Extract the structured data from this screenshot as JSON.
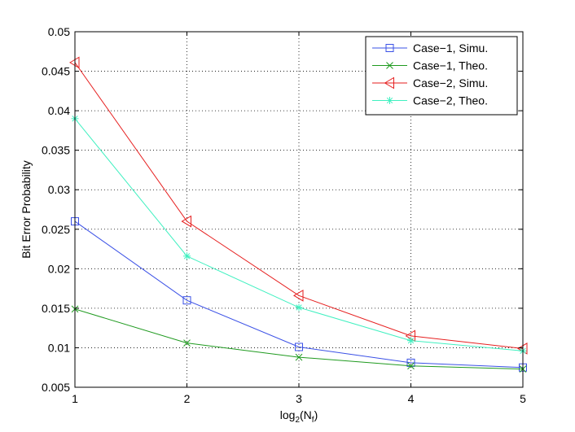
{
  "chart_data": {
    "type": "line",
    "title": "",
    "xlabel": "log",
    "xlabel_sub": "2",
    "xlabel_rest_open": "(N",
    "xlabel_sub2": "f",
    "xlabel_rest_close": ")",
    "ylabel": "Bit Error Probability",
    "xlim": [
      1,
      5
    ],
    "ylim": [
      0.005,
      0.05
    ],
    "xticks": [
      1,
      2,
      3,
      4,
      5
    ],
    "xtick_labels": [
      "1",
      "2",
      "3",
      "4",
      "5"
    ],
    "yticks": [
      0.005,
      0.01,
      0.015,
      0.02,
      0.025,
      0.03,
      0.035,
      0.04,
      0.045,
      0.05
    ],
    "ytick_labels": [
      "0.005",
      "0.01",
      "0.015",
      "0.02",
      "0.025",
      "0.03",
      "0.035",
      "0.04",
      "0.045",
      "0.05"
    ],
    "grid": true,
    "legend_position": "top-right",
    "x": [
      1,
      2,
      3,
      4,
      5
    ],
    "series": [
      {
        "name": "Case−1, Simu.",
        "values": [
          0.026,
          0.016,
          0.0101,
          0.0081,
          0.0075
        ],
        "color": "#3a50e6",
        "marker": "square"
      },
      {
        "name": "Case−1, Theo.",
        "values": [
          0.0149,
          0.0106,
          0.0088,
          0.0077,
          0.0073
        ],
        "color": "#1f9a1f",
        "marker": "x"
      },
      {
        "name": "Case−2, Simu.",
        "values": [
          0.0461,
          0.026,
          0.0166,
          0.0115,
          0.0099
        ],
        "color": "#e61e1e",
        "marker": "triangle-left"
      },
      {
        "name": "Case−2, Theo.",
        "values": [
          0.039,
          0.0216,
          0.0151,
          0.0109,
          0.0096
        ],
        "color": "#3ff0c0",
        "marker": "star"
      }
    ]
  }
}
